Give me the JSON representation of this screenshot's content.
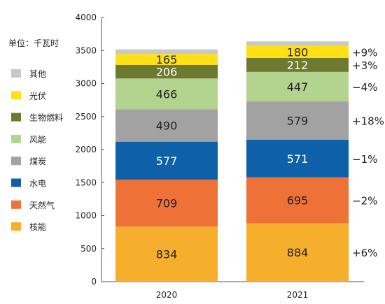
{
  "chart_data": {
    "type": "bar",
    "stacked": true,
    "unit_label": "单位：千瓦时",
    "categories": [
      "2020",
      "2021"
    ],
    "ylim": [
      0,
      4000
    ],
    "yticks": [
      "0",
      "500",
      "1000",
      "1500",
      "2000",
      "2500",
      "3000",
      "3500",
      "4000"
    ],
    "grid": false,
    "legend_position": "left",
    "series": [
      {
        "name": "核能",
        "color": "#F6AE2D",
        "values": [
          834,
          884
        ],
        "labels": [
          "834",
          "884"
        ],
        "change": "+6%"
      },
      {
        "name": "天然气",
        "color": "#EE7137",
        "values": [
          709,
          695
        ],
        "labels": [
          "709",
          "695"
        ],
        "change": "−2%"
      },
      {
        "name": "水电",
        "color": "#0E61A9",
        "values": [
          577,
          571
        ],
        "labels": [
          "577",
          "571"
        ],
        "change": "−1%"
      },
      {
        "name": "煤炭",
        "color": "#A2A2A2",
        "values": [
          490,
          579
        ],
        "labels": [
          "490",
          "579"
        ],
        "change": "+18%"
      },
      {
        "name": "风能",
        "color": "#B2D48E",
        "values": [
          466,
          447
        ],
        "labels": [
          "466",
          "447"
        ],
        "change": "−4%"
      },
      {
        "name": "生物燃料",
        "color": "#6E7A30",
        "values": [
          206,
          212
        ],
        "labels": [
          "206",
          "212"
        ],
        "change": "+3%"
      },
      {
        "name": "光伏",
        "color": "#FFE014",
        "values": [
          165,
          180
        ],
        "labels": [
          "165",
          "180"
        ],
        "change": "+9%"
      },
      {
        "name": "其他",
        "color": "#C8C8C8",
        "values": [
          70,
          70
        ],
        "labels": [
          "",
          ""
        ],
        "change": ""
      }
    ]
  }
}
